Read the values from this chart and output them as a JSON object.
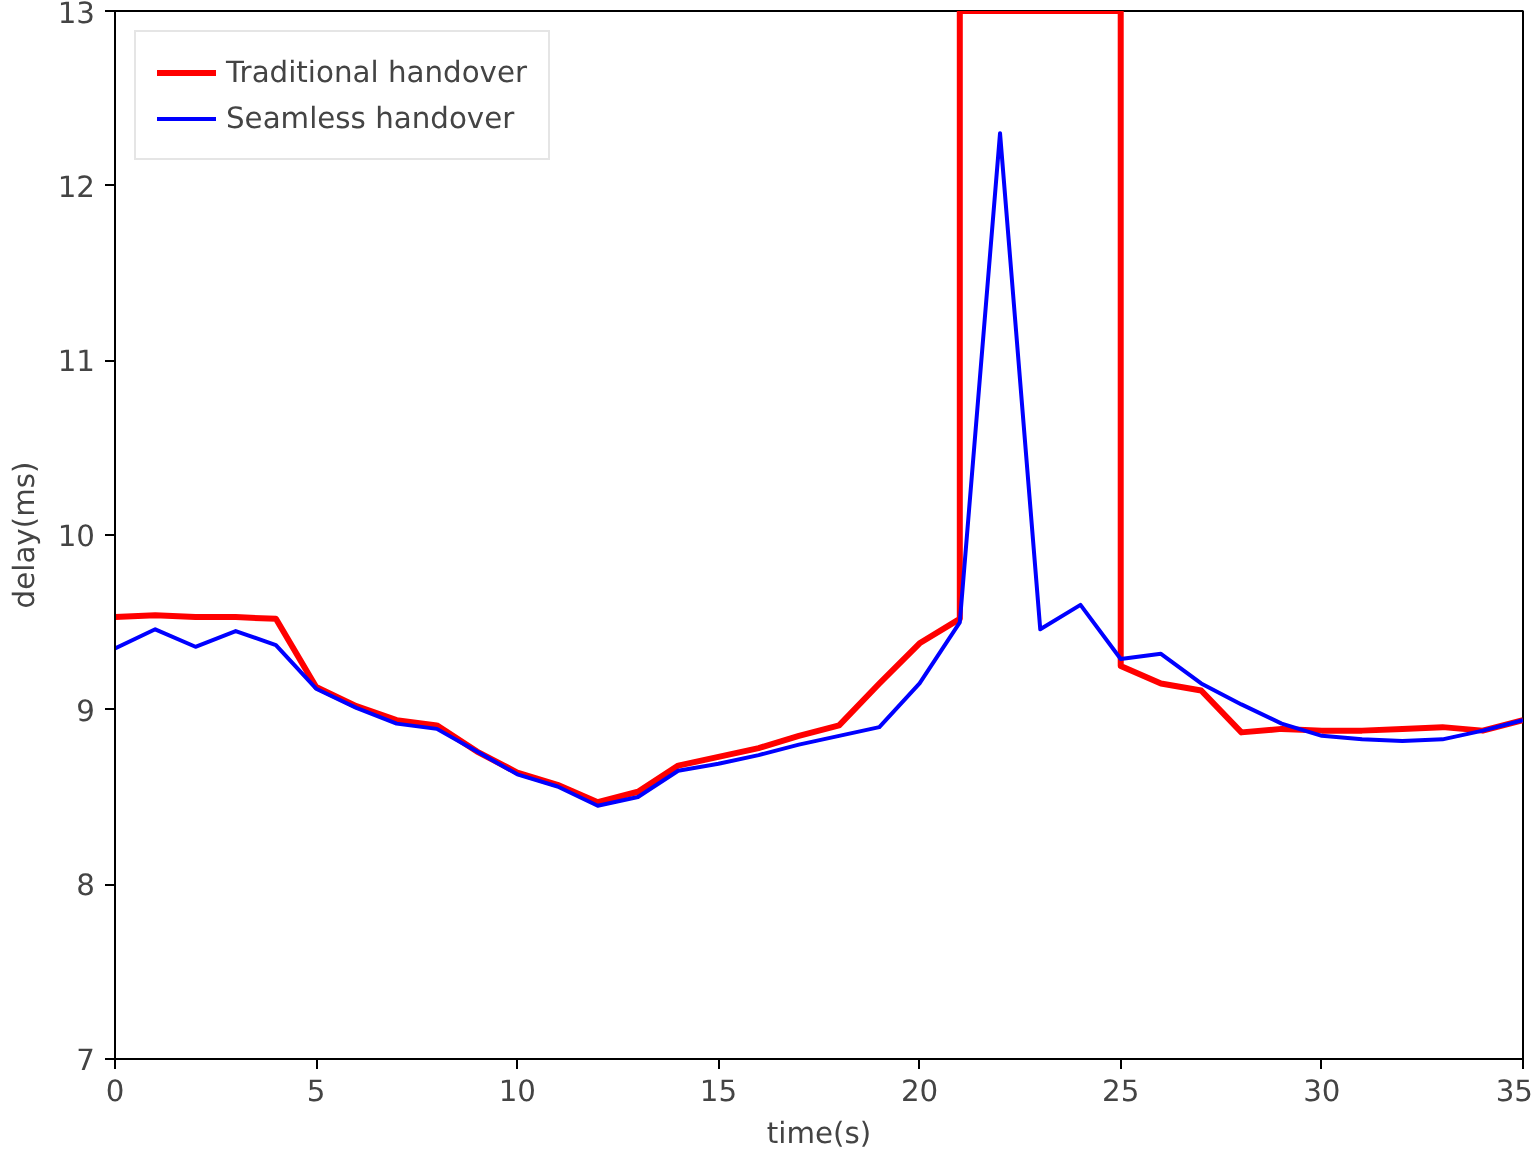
{
  "chart_data": {
    "type": "line",
    "xlabel": "time(s)",
    "ylabel": "delay(ms)",
    "xlim": [
      0,
      35
    ],
    "ylim": [
      7,
      13
    ],
    "xticks": [
      0,
      5,
      10,
      15,
      20,
      25,
      30,
      35
    ],
    "yticks": [
      7,
      8,
      9,
      10,
      11,
      12,
      13
    ],
    "grid": false,
    "legend": "top left",
    "marker": "none",
    "line_style": "solid",
    "series": [
      {
        "name": "Traditional handover",
        "color": "#ff0000",
        "x": [
          0,
          1,
          2,
          3,
          4,
          5,
          6,
          7,
          8,
          9,
          10,
          11,
          12,
          13,
          14,
          15,
          16,
          17,
          18,
          19,
          20,
          21,
          21,
          25,
          25,
          26,
          27,
          28,
          29,
          30,
          31,
          32,
          33,
          34,
          35
        ],
        "values": [
          9.53,
          9.54,
          9.53,
          9.53,
          9.52,
          9.13,
          9.02,
          8.94,
          8.91,
          8.76,
          8.64,
          8.57,
          8.47,
          8.53,
          8.68,
          8.73,
          8.78,
          8.85,
          8.91,
          9.15,
          9.38,
          9.52,
          13,
          13,
          9.25,
          9.15,
          9.11,
          8.87,
          8.89,
          8.88,
          8.88,
          8.89,
          8.9,
          8.88,
          8.94
        ]
      },
      {
        "name": "Seamless handover",
        "color": "#0000ff",
        "x": [
          0,
          1,
          2,
          3,
          4,
          5,
          6,
          7,
          8,
          9,
          10,
          11,
          12,
          13,
          14,
          15,
          16,
          17,
          18,
          19,
          20,
          21,
          22,
          23,
          24,
          25,
          26,
          27,
          28,
          29,
          30,
          31,
          32,
          33,
          34,
          35
        ],
        "values": [
          9.35,
          9.46,
          9.36,
          9.45,
          9.37,
          9.12,
          9.01,
          8.92,
          8.89,
          8.76,
          8.63,
          8.56,
          8.45,
          8.5,
          8.65,
          8.69,
          8.74,
          8.8,
          8.85,
          8.9,
          9.15,
          9.5,
          12.3,
          9.46,
          9.6,
          9.29,
          9.32,
          9.15,
          9.03,
          8.92,
          8.85,
          8.83,
          8.82,
          8.83,
          8.88,
          8.94
        ]
      }
    ]
  }
}
